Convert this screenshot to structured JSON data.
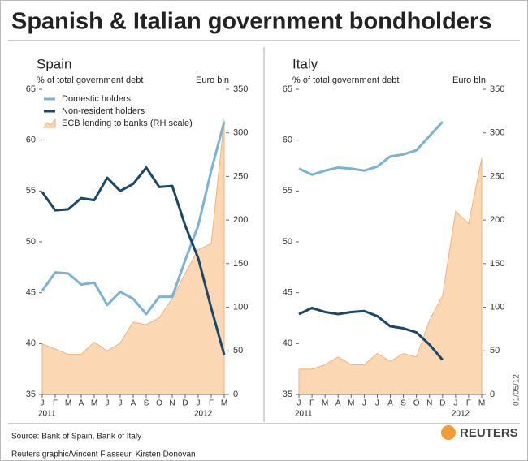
{
  "title": "Spanish & Italian government bondholders",
  "source": "Source: Bank of Spain, Bank of Italy",
  "credit": "Reuters graphic/Vincent Flasseur, Kirsten Donovan",
  "date": "01/05/12",
  "logo": "REUTERS",
  "chart_data": [
    {
      "type": "line",
      "title": "Spain",
      "ylabel": "% of total government debt",
      "y2label": "Euro bln",
      "categories": [
        "J",
        "F",
        "M",
        "A",
        "M",
        "J",
        "J",
        "A",
        "S",
        "O",
        "N",
        "D",
        "J",
        "F",
        "M"
      ],
      "category_groups": [
        {
          "label": "2011",
          "start": 0
        },
        {
          "label": "2012",
          "start": 12
        }
      ],
      "ylim": [
        35,
        65
      ],
      "yticks": [
        35,
        40,
        45,
        50,
        55,
        60,
        65
      ],
      "y2lim": [
        0,
        350
      ],
      "y2ticks": [
        0,
        50,
        100,
        150,
        200,
        250,
        300,
        350
      ],
      "legend": true,
      "series": [
        {
          "name": "Domestic holders",
          "color": "#7ab3d3",
          "values": [
            45.2,
            47.0,
            46.9,
            45.8,
            46.0,
            43.8,
            45.1,
            44.4,
            42.9,
            44.6,
            44.6,
            48.2,
            51.6,
            57.0,
            61.8
          ]
        },
        {
          "name": "Non-resident holders",
          "color": "#1b4769",
          "values": [
            54.9,
            53.1,
            53.2,
            54.3,
            54.1,
            56.3,
            55.0,
            55.7,
            57.3,
            55.4,
            55.5,
            51.6,
            48.4,
            43.5,
            38.9
          ]
        },
        {
          "name": "ECB lending to banks (RH scale)",
          "color": "#fcd7b4",
          "axis": "y2",
          "kind": "area",
          "values": [
            58,
            52,
            46,
            46,
            60,
            50,
            59,
            83,
            80,
            88,
            110,
            139,
            166,
            173,
            315
          ]
        }
      ]
    },
    {
      "type": "line",
      "title": "Italy",
      "ylabel": "% of total government debt",
      "y2label": "Euro bln",
      "categories": [
        "J",
        "F",
        "M",
        "A",
        "M",
        "J",
        "J",
        "A",
        "S",
        "O",
        "N",
        "D",
        "J",
        "F",
        "M"
      ],
      "category_groups": [
        {
          "label": "2011",
          "start": 0
        },
        {
          "label": "2012",
          "start": 12
        }
      ],
      "ylim": [
        35,
        65
      ],
      "yticks": [
        35,
        40,
        45,
        50,
        55,
        60,
        65
      ],
      "y2lim": [
        0,
        350
      ],
      "y2ticks": [
        0,
        50,
        100,
        150,
        200,
        250,
        300,
        350
      ],
      "legend": false,
      "series": [
        {
          "color": "#7ab3d3",
          "values": [
            57.2,
            56.6,
            57.0,
            57.3,
            57.2,
            57.0,
            57.4,
            58.4,
            58.6,
            59.0,
            60.4,
            61.8,
            null,
            null,
            null
          ]
        },
        {
          "color": "#1b4769",
          "values": [
            42.9,
            43.5,
            43.1,
            42.9,
            43.1,
            43.2,
            42.7,
            41.7,
            41.5,
            41.1,
            39.9,
            38.4,
            null,
            null,
            null
          ]
        },
        {
          "color": "#fcd7b4",
          "axis": "y2",
          "kind": "area",
          "values": [
            29,
            29,
            34,
            43,
            34,
            34,
            47,
            38,
            47,
            43,
            85,
            113,
            210,
            196,
            271
          ]
        }
      ]
    }
  ]
}
